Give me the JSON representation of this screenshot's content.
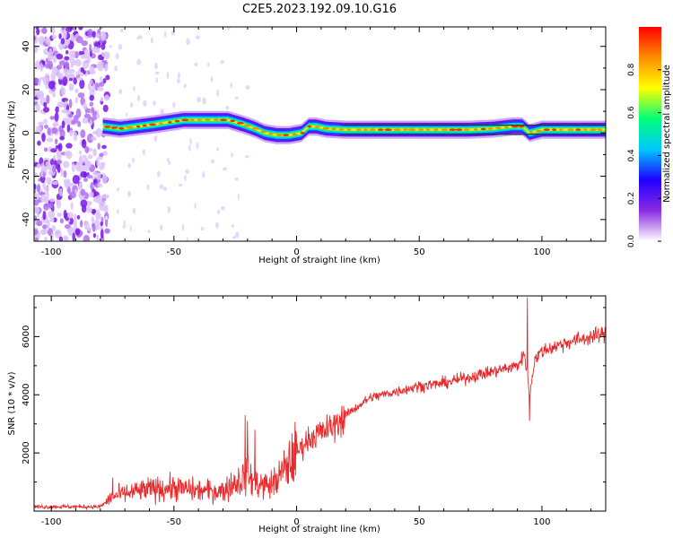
{
  "title": "C2E5.2023.192.09.10.G16",
  "chart_data": [
    {
      "type": "heatmap",
      "name": "spectrogram",
      "xlabel": "Height of straight line (km)",
      "ylabel": "Frequency (Hz)",
      "xlim": [
        -107,
        126
      ],
      "ylim": [
        -50,
        49
      ],
      "xticks": [
        -100,
        -50,
        0,
        50,
        100
      ],
      "xtick_labels": [
        "-100",
        "-50",
        "0",
        "50",
        "100"
      ],
      "yticks": [
        -40,
        -20,
        0,
        20,
        40
      ],
      "ytick_labels": [
        "-40",
        "-20",
        "0",
        "20",
        "40"
      ],
      "ridge": {
        "description": "Dominant frequency trace (Hz) vs height (km)",
        "x": [
          -79,
          -72,
          -65,
          -58,
          -52,
          -46,
          -40,
          -34,
          -28,
          -22,
          -17,
          -13,
          -8,
          -3,
          2,
          5,
          8,
          12,
          20,
          30,
          40,
          50,
          60,
          70,
          80,
          88,
          92,
          95,
          100,
          110,
          126
        ],
        "y": [
          3,
          2,
          3,
          4,
          5,
          6,
          6,
          6,
          6,
          4,
          2,
          0,
          -1,
          -1,
          0,
          3,
          3,
          2,
          1.5,
          1.5,
          1.5,
          1.5,
          1.5,
          1.5,
          2,
          3,
          3,
          0,
          1.5,
          1.5,
          1.5
        ]
      },
      "noise_region_km": [
        -107,
        -79
      ],
      "colorbar": {
        "label": "Normalized spectral amplitude",
        "range": [
          0,
          1
        ],
        "ticks": [
          0,
          0.2,
          0.4,
          0.6,
          0.8
        ],
        "tick_labels": [
          "0.0",
          "0.2",
          "0.4",
          "0.6",
          "0.8"
        ],
        "colormap": [
          "#ffffff",
          "#8a2be2",
          "#1e00ff",
          "#00c8ff",
          "#00ff78",
          "#ffff00",
          "#ff8c00",
          "#ff0000"
        ]
      }
    },
    {
      "type": "line",
      "name": "snr",
      "xlabel": "Height of straight line (km)",
      "ylabel": "SNR (10 * v/v)",
      "xlim": [
        -107,
        126
      ],
      "ylim": [
        0,
        7400
      ],
      "xticks": [
        -100,
        -50,
        0,
        50,
        100
      ],
      "xtick_labels": [
        "-100",
        "-50",
        "0",
        "50",
        "100"
      ],
      "yticks": [
        2000,
        4000,
        6000
      ],
      "ytick_labels": [
        "2000",
        "4000",
        "6000"
      ],
      "series": [
        {
          "name": "SNR",
          "color": "#e8282a",
          "trend_x": [
            -107,
            -80,
            -75,
            -70,
            -60,
            -50,
            -40,
            -30,
            -25,
            -20,
            -15,
            -10,
            -5,
            0,
            5,
            10,
            15,
            20,
            30,
            40,
            50,
            60,
            70,
            80,
            90,
            93,
            95,
            97,
            100,
            110,
            126
          ],
          "trend_y": [
            150,
            150,
            500,
            600,
            750,
            800,
            700,
            700,
            1000,
            1200,
            900,
            900,
            1400,
            2000,
            2500,
            2700,
            2900,
            3300,
            3900,
            4100,
            4300,
            4400,
            4600,
            4800,
            5000,
            5400,
            4000,
            5200,
            5500,
            5800,
            6100
          ],
          "spikes": [
            {
              "x": -75,
              "y": 1150
            },
            {
              "x": -21,
              "y": 3300
            },
            {
              "x": -20,
              "y": 3100
            },
            {
              "x": -17,
              "y": 2800
            },
            {
              "x": 94,
              "y": 7350
            },
            {
              "x": 95,
              "y": 3100
            }
          ]
        }
      ]
    }
  ]
}
